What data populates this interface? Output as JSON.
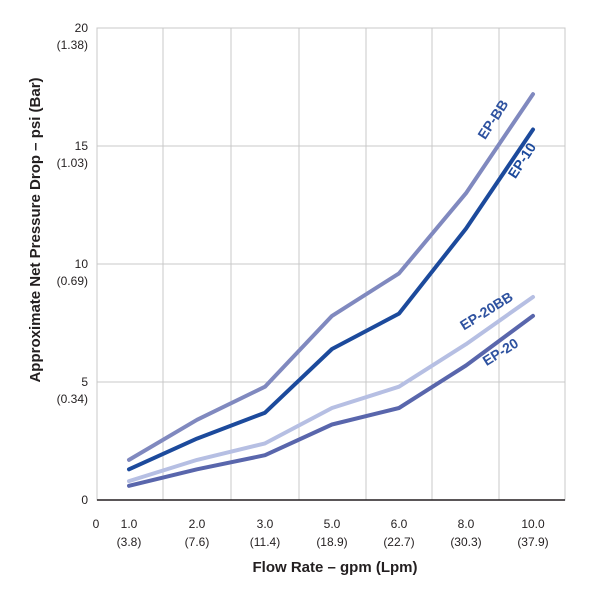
{
  "chart_data": {
    "type": "line",
    "title": "",
    "xlabel": "Flow Rate – gpm (Lpm)",
    "ylabel": "Approximate Net Pressure Drop – psi (Bar)",
    "ylim": [
      0,
      20
    ],
    "grid": true,
    "x_origin_label": "0",
    "categories": [
      "1.0",
      "2.0",
      "3.0",
      "5.0",
      "6.0",
      "8.0",
      "10.0"
    ],
    "categories_metric": [
      "(3.8)",
      "(7.6)",
      "(11.4)",
      "(18.9)",
      "(22.7)",
      "(30.3)",
      "(37.9)"
    ],
    "y_ticks": [
      {
        "value": 0,
        "label": "0",
        "metric": ""
      },
      {
        "value": 5,
        "label": "5",
        "metric": "(0.34)"
      },
      {
        "value": 10,
        "label": "10",
        "metric": "(0.69)"
      },
      {
        "value": 15,
        "label": "15",
        "metric": "(1.03)"
      },
      {
        "value": 20,
        "label": "20",
        "metric": "(1.38)"
      }
    ],
    "series": [
      {
        "name": "EP-BB",
        "color": "#8089bf",
        "label_color": "#2e52a0",
        "values": [
          1.7,
          3.4,
          4.8,
          7.8,
          9.6,
          13.0,
          17.2
        ]
      },
      {
        "name": "EP-10",
        "color": "#1c4a9c",
        "label_color": "#1c4a9c",
        "values": [
          1.3,
          2.6,
          3.7,
          6.4,
          7.9,
          11.5,
          15.7
        ]
      },
      {
        "name": "EP-20BB",
        "color": "#b6bfe3",
        "label_color": "#2e52a0",
        "values": [
          0.8,
          1.7,
          2.4,
          3.9,
          4.8,
          6.6,
          8.6
        ]
      },
      {
        "name": "EP-20",
        "color": "#5966ac",
        "label_color": "#2e52a0",
        "values": [
          0.6,
          1.3,
          1.9,
          3.2,
          3.9,
          5.7,
          7.8
        ]
      }
    ]
  }
}
